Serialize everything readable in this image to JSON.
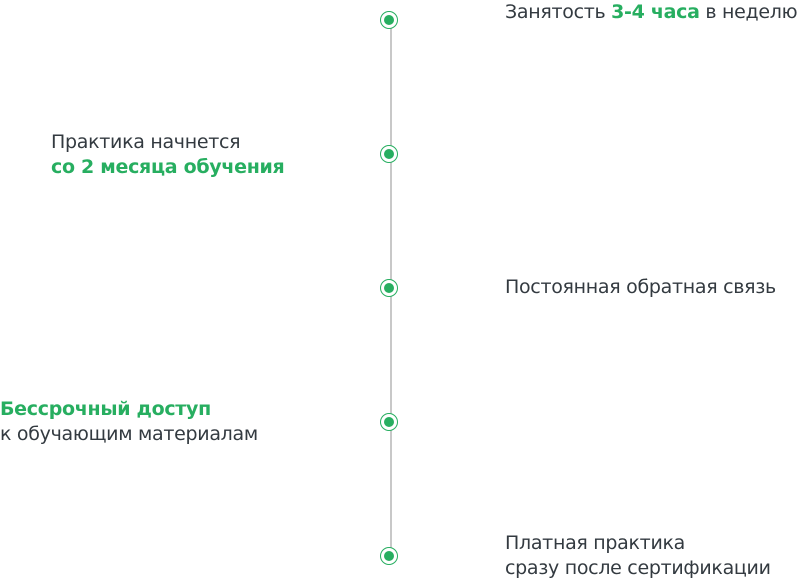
{
  "accent_color": "#27ae60",
  "items": [
    {
      "side": "right",
      "before": "Занятость ",
      "highlight": "3-4 часа",
      "after": " в неделю"
    },
    {
      "side": "left",
      "line1": "Практика начнется",
      "highlight": "со 2 месяца обучения"
    },
    {
      "side": "right",
      "line1": "Постоянная обратная связь"
    },
    {
      "side": "left",
      "highlight": "Бессрочный доступ",
      "line2": "к обучающим материалам"
    },
    {
      "side": "right",
      "line1": "Платная практика",
      "line2": "сразу после сертификации"
    }
  ]
}
